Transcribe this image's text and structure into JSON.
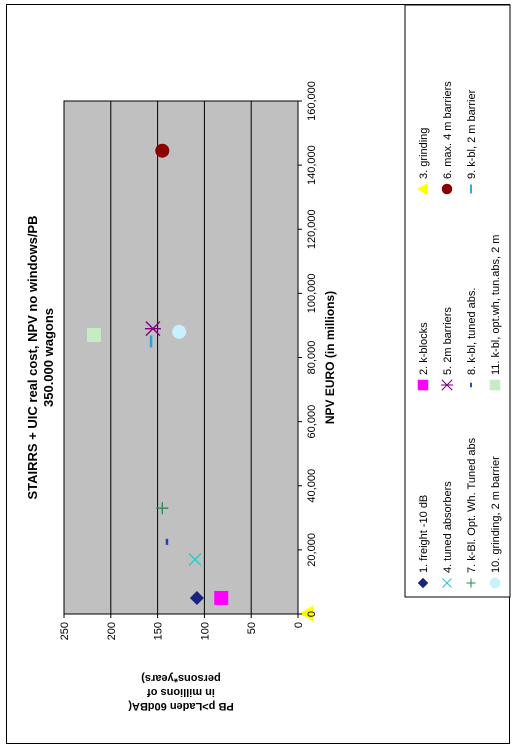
{
  "chart_data": {
    "type": "scatter",
    "title": "STAIRRS + UIC real cost, NPV no windows/PB",
    "subtitle": "350.000 wagons",
    "xlabel": "NPV EURO (in millions)",
    "ylabel": "PB p>Laden 60dBA(in millions of persons*years)",
    "xlim": [
      0,
      160000
    ],
    "ylim": [
      0,
      250
    ],
    "x_ticks": [
      "0",
      "20,000",
      "40,000",
      "60,000",
      "80,000",
      "100,000",
      "120,000",
      "140,000",
      "160,000"
    ],
    "y_ticks": [
      "0",
      "50",
      "100",
      "150",
      "200",
      "250"
    ],
    "grid": true,
    "legend_position": "bottom",
    "series": [
      {
        "name": "1. freight -10 dB",
        "marker": "diamond",
        "color": "#1a237e",
        "x": 5000,
        "y": 108
      },
      {
        "name": "2. k-blocks",
        "marker": "square",
        "color": "#ff00ff",
        "x": 5000,
        "y": 82
      },
      {
        "name": "3. grinding",
        "marker": "triangle",
        "color": "#ffff00",
        "x": 200,
        "y": -10
      },
      {
        "name": "4. tuned absorbers",
        "marker": "x",
        "color": "#33cccc",
        "x": 17000,
        "y": 110
      },
      {
        "name": "5. 2m barriers",
        "marker": "star",
        "color": "#800080",
        "x": 89000,
        "y": 155
      },
      {
        "name": "6. max. 4 m barriers",
        "marker": "circle",
        "color": "#8b0000",
        "x": 144500,
        "y": 145
      },
      {
        "name": "7. k-Bl. Opt. Wh. Tuned abs",
        "marker": "plus",
        "color": "#2e8b57",
        "x": 33000,
        "y": 145
      },
      {
        "name": "8. k-bl, tuned abs.",
        "marker": "dash-short",
        "color": "#1f3fbf",
        "x": 22500,
        "y": 140
      },
      {
        "name": "9. k-bl, 2 m barrier",
        "marker": "dash",
        "color": "#29a3e0",
        "x": 85000,
        "y": 157
      },
      {
        "name": "10. grinding, 2 m barrier",
        "marker": "circle",
        "color": "#c8f0ff",
        "x": 88000,
        "y": 127
      },
      {
        "name": "11. k-bl, opt.wh, tun.abs, 2 m",
        "marker": "square",
        "color": "#c6ecc6",
        "x": 87000,
        "y": 218
      }
    ]
  }
}
